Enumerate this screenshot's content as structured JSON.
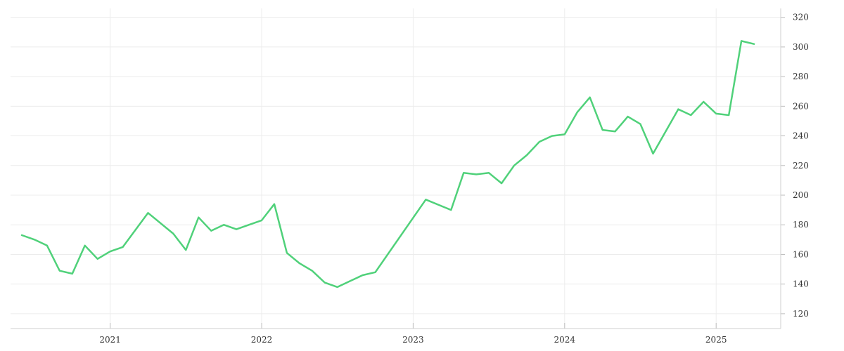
{
  "chart_data": {
    "type": "line",
    "title": "",
    "xlabel": "",
    "ylabel": "",
    "x_axis": {
      "ticks": [
        "2021",
        "2022",
        "2023",
        "2024",
        "2025"
      ],
      "range": [
        "2020-06",
        "2025-05"
      ]
    },
    "y_axis": {
      "position": "right",
      "ticks": [
        120,
        140,
        160,
        180,
        200,
        220,
        240,
        260,
        280,
        300,
        320
      ],
      "range": [
        110,
        326
      ]
    },
    "grid": true,
    "legend": "none",
    "series": [
      {
        "color": "#50d17a",
        "points": [
          [
            "2020-06",
            173
          ],
          [
            "2020-07",
            170
          ],
          [
            "2020-08",
            166
          ],
          [
            "2020-09",
            149
          ],
          [
            "2020-10",
            147
          ],
          [
            "2020-11",
            166
          ],
          [
            "2020-12",
            157
          ],
          [
            "2021-01",
            162
          ],
          [
            "2021-02",
            165
          ],
          [
            "2021-04",
            188
          ],
          [
            "2021-06",
            174
          ],
          [
            "2021-07",
            163
          ],
          [
            "2021-08",
            185
          ],
          [
            "2021-09",
            176
          ],
          [
            "2021-10",
            180
          ],
          [
            "2021-11",
            177
          ],
          [
            "2021-12",
            180
          ],
          [
            "2022-01",
            183
          ],
          [
            "2022-02",
            194
          ],
          [
            "2022-03",
            161
          ],
          [
            "2022-04",
            154
          ],
          [
            "2022-05",
            149
          ],
          [
            "2022-06",
            141
          ],
          [
            "2022-07",
            138
          ],
          [
            "2022-08",
            142
          ],
          [
            "2022-09",
            146
          ],
          [
            "2022-10",
            148
          ],
          [
            "2023-02",
            197
          ],
          [
            "2023-04",
            190
          ],
          [
            "2023-05",
            215
          ],
          [
            "2023-06",
            214
          ],
          [
            "2023-07",
            215
          ],
          [
            "2023-08",
            208
          ],
          [
            "2023-09",
            220
          ],
          [
            "2023-10",
            227
          ],
          [
            "2023-11",
            236
          ],
          [
            "2023-12",
            240
          ],
          [
            "2024-01",
            241
          ],
          [
            "2024-02",
            256
          ],
          [
            "2024-03",
            266
          ],
          [
            "2024-04",
            244
          ],
          [
            "2024-05",
            243
          ],
          [
            "2024-06",
            253
          ],
          [
            "2024-07",
            248
          ],
          [
            "2024-08",
            228
          ],
          [
            "2024-10",
            258
          ],
          [
            "2024-11",
            254
          ],
          [
            "2024-12",
            263
          ],
          [
            "2025-01",
            255
          ],
          [
            "2025-02",
            254
          ],
          [
            "2025-03",
            304
          ],
          [
            "2025-04",
            302
          ]
        ]
      }
    ]
  }
}
